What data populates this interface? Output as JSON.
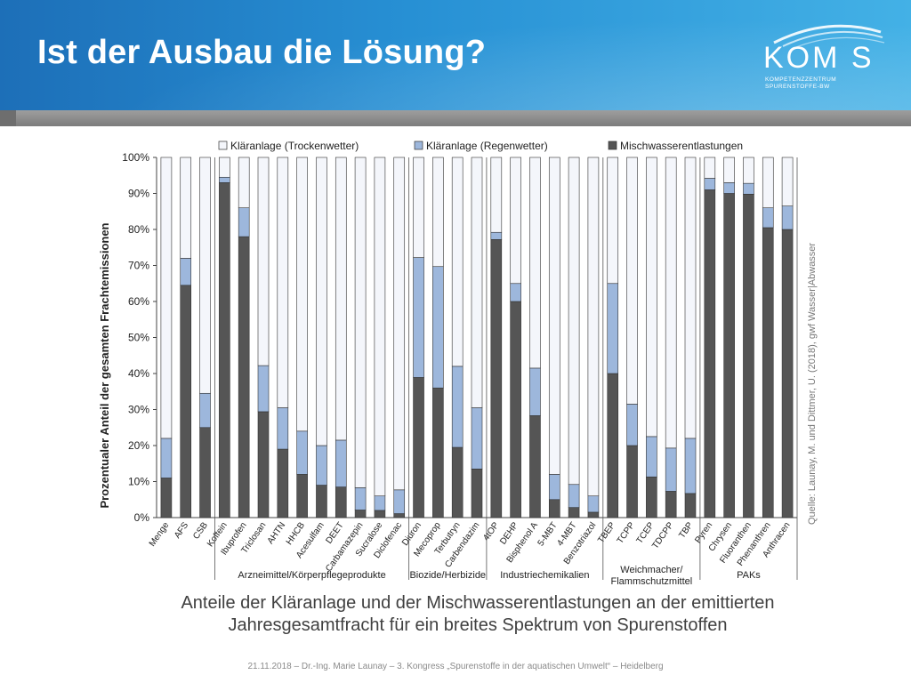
{
  "slide": {
    "title": "Ist der Ausbau die Lösung?",
    "logo_text": "KOM S",
    "logo_subtitle_1": "KOMPETENZZENTRUM",
    "logo_subtitle_2": "SPURENSTOFFE-BW",
    "caption_line1": "Anteile der Kläranlage und der Mischwasserentlastungen an der emittierten",
    "caption_line2": "Jahresgesamtfracht für ein breites Spektrum von Spurenstoffen",
    "footer": "21.11.2018 – Dr.-Ing. Marie Launay – 3. Kongress „Spurenstoffe in der aquatischen Umwelt“ – Heidelberg",
    "source": "Quelle: Launay, M. und Dittmer, U. (2018), gwf Wasser|Abwasser"
  },
  "colors": {
    "dry": "#f4f6fb",
    "wet": "#9db7dc",
    "cso": "#555555",
    "header_dark": "#1d6fb8",
    "header_light": "#43b1e6"
  },
  "chart_data": {
    "type": "bar",
    "stacked": true,
    "ylabel": "Prozentualer Anteil der gesamten Frachtemissionen",
    "ylim": [
      0,
      100
    ],
    "yticks": [
      "0%",
      "10%",
      "20%",
      "30%",
      "40%",
      "50%",
      "60%",
      "70%",
      "80%",
      "90%",
      "100%"
    ],
    "grid": false,
    "legend_position": "top",
    "categories": [
      "Menge",
      "AFS",
      "CSB",
      "Koffein",
      "Ibuprofen",
      "Triclosan",
      "AHTN",
      "HHCB",
      "Acesulfam",
      "DEET",
      "Carbamazepin",
      "Sucralose",
      "Diclofenac",
      "Diuron",
      "Mecoprop",
      "Terbutryn",
      "Carbendazim",
      "4tOP",
      "DEHP",
      "Bisphenol A",
      "5-MBT",
      "4-MBT",
      "Benzotriazol",
      "TBEP",
      "TCPP",
      "TCEP",
      "TDCPP",
      "TBP",
      "Pyren",
      "Chrysen",
      "Fluoranthen",
      "Phenanthren",
      "Anthracen"
    ],
    "series": [
      {
        "name": "Kläranlage (Trockenwetter)",
        "values": [
          78,
          28,
          65.5,
          5.5,
          14,
          57.8,
          69.5,
          76,
          80,
          78.5,
          91.7,
          94,
          92.3,
          27.8,
          30.3,
          58,
          69.5,
          20.8,
          35,
          58.5,
          88,
          90.8,
          94,
          35,
          68.5,
          77.5,
          80.7,
          78,
          5.8,
          7,
          7.2,
          14,
          13.5
        ]
      },
      {
        "name": "Kläranlage (Regenwetter)",
        "values": [
          11,
          7.5,
          9.5,
          1.5,
          8,
          12.8,
          11.5,
          12,
          11,
          13,
          6.2,
          4,
          6.6,
          33.3,
          33.7,
          22.5,
          17,
          2,
          5,
          13.2,
          7,
          6.4,
          4.5,
          25,
          11.5,
          11.2,
          12,
          15.3,
          3.2,
          3,
          3,
          5.5,
          6.5
        ]
      },
      {
        "name": "Mischwasserentlastungen",
        "values": [
          11,
          64.5,
          25,
          93,
          78,
          29.4,
          19,
          12,
          9,
          8.5,
          2.1,
          2,
          1.1,
          38.9,
          36,
          19.5,
          13.5,
          77.2,
          60,
          28.3,
          5,
          2.8,
          1.5,
          40,
          20,
          11.3,
          7.3,
          6.7,
          91,
          90,
          89.8,
          80.5,
          80
        ]
      }
    ],
    "groups": [
      {
        "label": "Arzneimittel/Körperpflegeprodukte",
        "start": 3,
        "end": 12
      },
      {
        "label": "Biozide/Herbizide",
        "start": 13,
        "end": 16
      },
      {
        "label": "Industriechemikalien",
        "start": 17,
        "end": 22
      },
      {
        "label": "Weichmacher/\nFlammschutzmittel",
        "start": 23,
        "end": 27
      },
      {
        "label": "PAKs",
        "start": 28,
        "end": 32
      }
    ]
  }
}
